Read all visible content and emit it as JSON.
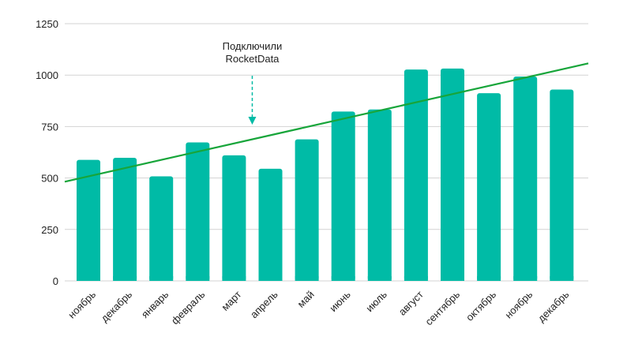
{
  "chart_data": {
    "type": "bar",
    "categories": [
      "ноябрь",
      "декабрь",
      "январь",
      "февраль",
      "март",
      "апрель",
      "май",
      "июнь",
      "июль",
      "август",
      "сентябрь",
      "октябрь",
      "ноябрь",
      "декабрь"
    ],
    "values": [
      588,
      598,
      508,
      673,
      610,
      545,
      688,
      823,
      833,
      1027,
      1032,
      912,
      993,
      930
    ],
    "ylim": [
      0,
      1250
    ],
    "yticks": [
      0,
      250,
      500,
      750,
      1000,
      1250
    ],
    "grid": true,
    "trendline": {
      "start": 482,
      "end": 1057
    },
    "annotation": {
      "lines": [
        "Подключили",
        "RocketData"
      ],
      "between_categories": [
        4,
        5
      ]
    },
    "colors": {
      "bar": "#00BBA6",
      "trend": "#17A53A",
      "annotation_arrow": "#00BBA6",
      "grid": "#D3D3D3"
    }
  }
}
